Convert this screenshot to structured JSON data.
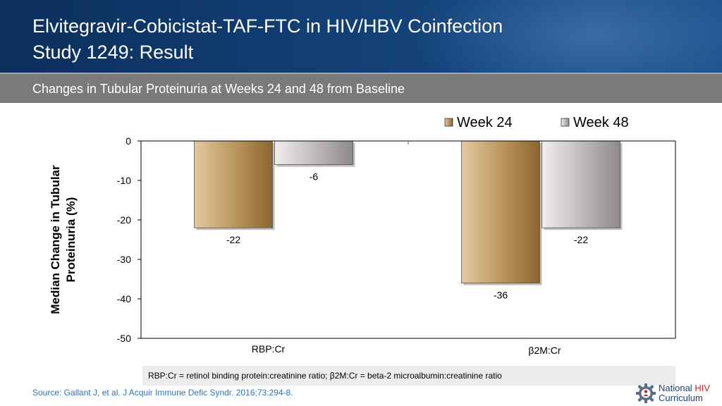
{
  "header": {
    "title_line1": "Elvitegravir-Cobicistat-TAF-FTC in HIV/HBV Coinfection",
    "title_line2": "Study 1249: Result"
  },
  "subtitle": "Changes in Tubular Proteinuria at Weeks 24 and 48 from Baseline",
  "chart_data": {
    "type": "bar",
    "title": "",
    "ylabel": "Median Change in Tubular Proteinuria (%)",
    "xlabel": "",
    "categories": [
      "RBP:Cr",
      "β2M:Cr"
    ],
    "series": [
      {
        "name": "Week 24",
        "values": [
          -22,
          -36
        ],
        "labels": [
          "-22",
          "-36"
        ],
        "color": "#b48a4e"
      },
      {
        "name": "Week 48",
        "values": [
          -6,
          -22
        ],
        "labels": [
          "-6",
          "-22"
        ],
        "color": "#a8a2a2"
      }
    ],
    "ylim": [
      -50,
      0
    ],
    "yticks": [
      0,
      -10,
      -20,
      -30,
      -40,
      -50
    ],
    "ytick_labels": [
      "0",
      "-10",
      "-20",
      "-30",
      "-40",
      "-50"
    ],
    "legend_position": "top-right",
    "grid": false
  },
  "footnote": "RBP:Cr = retinol binding protein:creatinine ratio; β2M:Cr = beta-2 microalbumin:creatinine ratio",
  "source": "Source: Gallant J, et al. J Acquir Immune Defic Syndr. 2016;73:294-8.",
  "logo": {
    "word1": "National",
    "word2": "HIV",
    "word3": "Curriculum",
    "icon": "gear-person-icon"
  }
}
